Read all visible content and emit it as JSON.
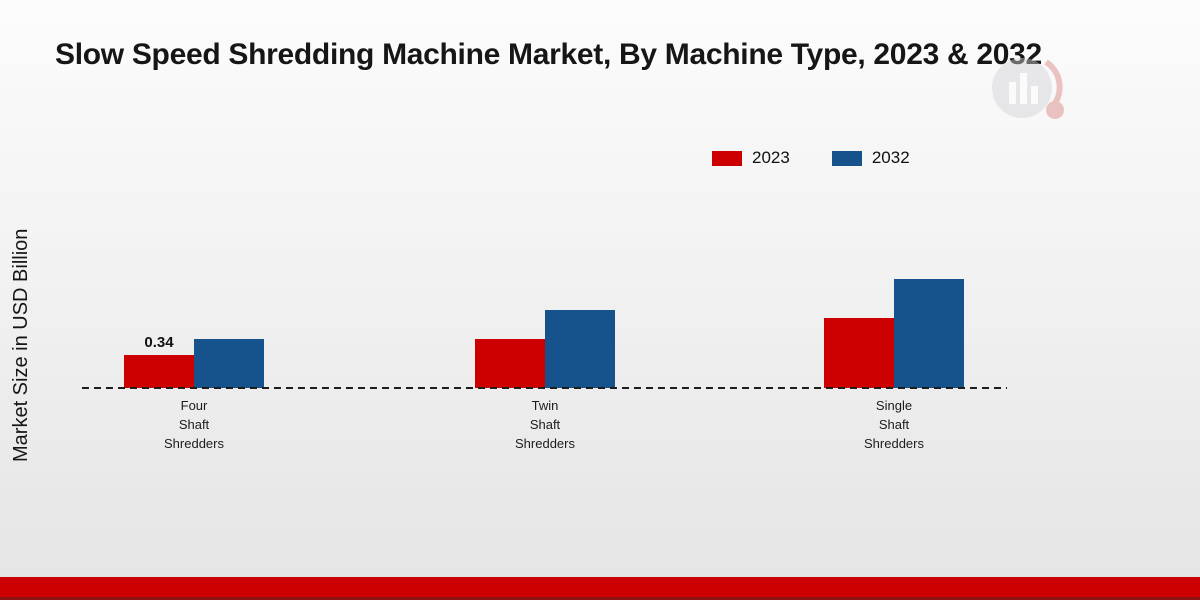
{
  "page": {
    "background_top": "#fcfcfc",
    "background_bottom": "#e4e4e4"
  },
  "chart_data": {
    "type": "bar",
    "title": "Slow Speed Shredding Machine Market, By Machine Type, 2023 & 2032",
    "ylabel": "Market Size in USD Billion",
    "xlabel": "",
    "categories": [
      "Four Shaft Shredders",
      "Twin Shaft Shredders",
      "Single Shaft Shredders"
    ],
    "series": [
      {
        "name": "2023",
        "color": "#cc0000",
        "values": [
          0.34,
          0.5,
          0.72
        ]
      },
      {
        "name": "2032",
        "color": "#16538c",
        "values": [
          0.5,
          0.8,
          1.12
        ]
      }
    ],
    "data_labels": [
      {
        "series": "2023",
        "category_index": 0,
        "text": "0.34"
      }
    ],
    "ylim": [
      0,
      1.6
    ],
    "grid": false,
    "legend_position": "top-right",
    "baseline_style": "dashed"
  },
  "footer": {
    "band_color": "#cc0000",
    "edge_color": "#8a1313"
  }
}
